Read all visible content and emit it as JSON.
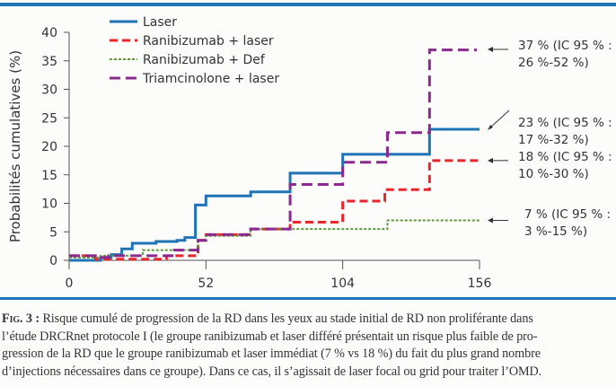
{
  "chart_data": {
    "type": "line",
    "step": true,
    "ylabel": "Probabilités cumulatives (%)",
    "xlabel": "",
    "xlim": [
      0,
      156
    ],
    "ylim": [
      0,
      40
    ],
    "xticks": [
      0,
      52,
      104,
      156
    ],
    "yticks": [
      0,
      5,
      10,
      15,
      20,
      25,
      30,
      35,
      40
    ],
    "legend_position": "top-left",
    "series": [
      {
        "name": "Laser",
        "color": "#1f73b7",
        "dash": "solid",
        "points": [
          [
            0,
            0
          ],
          [
            12,
            0.5
          ],
          [
            16,
            1
          ],
          [
            20,
            2
          ],
          [
            24,
            3
          ],
          [
            33,
            3.3
          ],
          [
            41,
            3.5
          ],
          [
            44,
            4
          ],
          [
            48,
            9.7
          ],
          [
            52,
            11.3
          ],
          [
            69,
            12
          ],
          [
            84,
            15.3
          ],
          [
            104,
            18.6
          ],
          [
            137,
            23
          ],
          [
            156,
            23
          ]
        ]
      },
      {
        "name": "Ranibizumab + laser",
        "color": "#e8262c",
        "dash": "dashed",
        "points": [
          [
            0,
            0.8
          ],
          [
            10,
            0.2
          ],
          [
            37,
            0.8
          ],
          [
            49,
            3.5
          ],
          [
            52,
            4.5
          ],
          [
            69,
            5.5
          ],
          [
            84,
            6.7
          ],
          [
            104,
            10.4
          ],
          [
            120,
            12.4
          ],
          [
            137,
            17.5
          ],
          [
            156,
            17.5
          ]
        ]
      },
      {
        "name": "Ranibizumab + Def",
        "color": "#5e9a3a",
        "dash": "dotted",
        "points": [
          [
            0,
            0.5
          ],
          [
            12,
            0.8
          ],
          [
            28,
            1.8
          ],
          [
            49,
            3.5
          ],
          [
            52,
            4.3
          ],
          [
            69,
            5.5
          ],
          [
            121,
            7
          ],
          [
            156,
            7
          ]
        ]
      },
      {
        "name": "Triamcinolone + laser",
        "color": "#8b2a8e",
        "dash": "dashdot",
        "points": [
          [
            0,
            0.8
          ],
          [
            12,
            0.5
          ],
          [
            15,
            0.8
          ],
          [
            40,
            1.8
          ],
          [
            49,
            3.5
          ],
          [
            52,
            4.5
          ],
          [
            69,
            5.5
          ],
          [
            84,
            13.3
          ],
          [
            104,
            17.2
          ],
          [
            121,
            22.4
          ],
          [
            137,
            36.9
          ],
          [
            155,
            36.9
          ]
        ]
      }
    ],
    "annotations": [
      {
        "line1": "37 % (IC 95 % :",
        "line2": "26 %-52 %)",
        "series": "Triamcinolone + laser",
        "value": 37
      },
      {
        "line1": "23 % (IC 95 % :",
        "line2": "17 %-32 %)",
        "series": "Laser",
        "value": 23
      },
      {
        "line1": "18 % (IC 95 % :",
        "line2": "10 %-30 %)",
        "series": "Ranibizumab + laser",
        "value": 17.5
      },
      {
        "line1": "7 % (IC 95 % :",
        "line2": "3 %-15 %)",
        "series": "Ranibizumab + Def",
        "value": 7
      }
    ]
  },
  "caption": {
    "label": "Fig. 3 :",
    "lines": [
      " Risque cumulé de progression de la RD dans les yeux au stade initial de RD non proliférante dans",
      "l’étude DRCRnet protocole I (le groupe ranibizumab et laser différé présentait un risque plus faible de pro-",
      "gression de la RD que le groupe ranibizumab et laser immédiat (7 % vs 18 %) du fait du plus grand nombre",
      "d’injections nécessaires dans ce groupe). Dans ce cas, il s’agissait de laser focal ou grid pour traiter l’OMD."
    ]
  },
  "colors": {
    "rule": "#1f73b7"
  }
}
